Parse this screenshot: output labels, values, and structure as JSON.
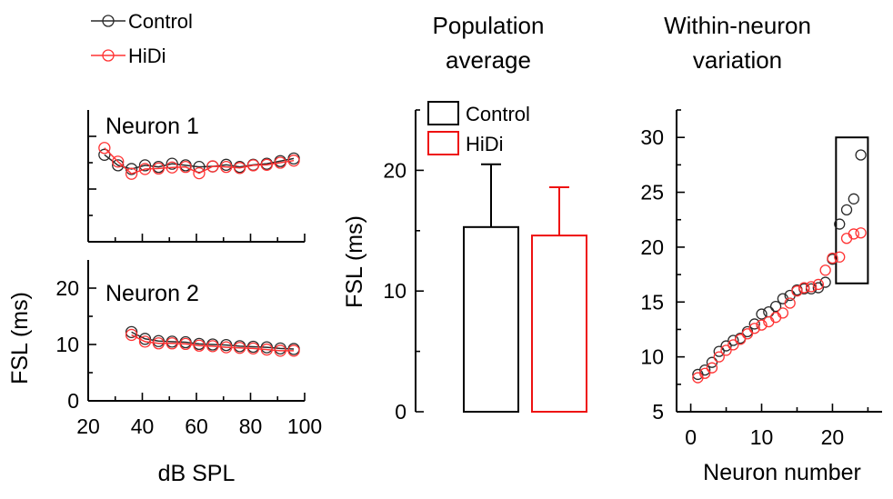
{
  "chart_data": [
    {
      "id": "neuron1",
      "type": "line",
      "title": "Neuron 1",
      "xlabel": "",
      "ylabel": "",
      "xlim": [
        20,
        100
      ],
      "ylim": [
        0,
        25
      ],
      "series": [
        {
          "name": "Control",
          "color": "#2a2a2a",
          "x": [
            26,
            31,
            36,
            41,
            46,
            51,
            56,
            61,
            66,
            71,
            76,
            81,
            86,
            91,
            96
          ],
          "y": [
            16.5,
            14.5,
            13.8,
            14.5,
            14.2,
            14.8,
            14.5,
            14.2,
            14.3,
            14.6,
            14.2,
            14.6,
            14.8,
            15.3,
            15.8
          ]
        },
        {
          "name": "HiDi",
          "color": "#ff3333",
          "x": [
            26,
            31,
            36,
            41,
            46,
            51,
            56,
            61,
            66,
            71,
            76,
            81,
            86,
            91,
            96
          ],
          "y": [
            17.8,
            15.2,
            12.9,
            13.8,
            13.9,
            14.1,
            14.2,
            13.0,
            14.3,
            14.2,
            14.0,
            14.5,
            14.6,
            15.0,
            15.4
          ]
        }
      ]
    },
    {
      "id": "neuron2",
      "type": "line",
      "title": "Neuron 2",
      "xlabel": "dB SPL",
      "ylabel": "FSL (ms)",
      "xlim": [
        20,
        100
      ],
      "ylim": [
        0,
        25
      ],
      "xticks": [
        "20",
        "40",
        "60",
        "80",
        "100"
      ],
      "yticks": [
        "0",
        "10",
        "20"
      ],
      "series": [
        {
          "name": "Control",
          "color": "#2a2a2a",
          "x": [
            36,
            41,
            46,
            51,
            56,
            61,
            66,
            71,
            76,
            81,
            86,
            91,
            96
          ],
          "y": [
            12.2,
            11.0,
            10.6,
            10.5,
            10.4,
            10.1,
            10.0,
            9.9,
            9.7,
            9.6,
            9.5,
            9.3,
            9.2
          ]
        },
        {
          "name": "HiDi",
          "color": "#ff3333",
          "x": [
            36,
            41,
            46,
            51,
            56,
            61,
            66,
            71,
            76,
            81,
            86,
            91,
            96
          ],
          "y": [
            11.7,
            10.5,
            10.2,
            10.2,
            10.1,
            9.8,
            9.7,
            9.5,
            9.4,
            9.3,
            9.1,
            8.9,
            8.9
          ]
        }
      ],
      "legend": [
        "Control",
        "HiDi"
      ]
    },
    {
      "id": "population",
      "type": "bar",
      "title": "Population average",
      "title_lines": [
        "Population",
        "average"
      ],
      "ylabel": "FSL (ms)",
      "ylim": [
        0,
        25
      ],
      "yticks": [
        "0",
        "10",
        "20"
      ],
      "categories": [
        "Control",
        "HiDi"
      ],
      "values": [
        15.3,
        14.6
      ],
      "errors": [
        5.2,
        4.0
      ],
      "colors": [
        "#000000",
        "#ee1111"
      ],
      "legend": [
        "Control",
        "HiDi"
      ]
    },
    {
      "id": "within",
      "type": "scatter",
      "title": "Within-neuron variation",
      "title_lines": [
        "Within-neuron",
        "variation"
      ],
      "xlabel": "Neuron number",
      "xlim": [
        -2,
        27
      ],
      "ylim": [
        5,
        32.5
      ],
      "xticks": [
        "0",
        "10",
        "20"
      ],
      "yticks": [
        "5",
        "10",
        "15",
        "20",
        "25",
        "30"
      ],
      "series": [
        {
          "name": "Control",
          "color": "#2a2a2a",
          "x": [
            1,
            2,
            3,
            4,
            5,
            6,
            7,
            8,
            9,
            10,
            11,
            12,
            13,
            14,
            15,
            16,
            17,
            18,
            19,
            20,
            21,
            22,
            23,
            24
          ],
          "y": [
            8.4,
            8.8,
            9.5,
            10.5,
            11.0,
            11.5,
            11.7,
            12.3,
            13.0,
            13.9,
            14.1,
            14.6,
            15.3,
            15.6,
            16.1,
            16.2,
            16.2,
            16.3,
            16.8,
            18.9,
            22.1,
            23.4,
            24.4,
            28.4
          ]
        },
        {
          "name": "HiDi",
          "color": "#ff3333",
          "x": [
            1,
            2,
            3,
            4,
            5,
            6,
            7,
            8,
            9,
            10,
            11,
            12,
            13,
            14,
            15,
            16,
            17,
            18,
            19,
            20,
            21,
            22,
            23,
            24
          ],
          "y": [
            8.1,
            8.5,
            9.0,
            10.0,
            10.6,
            11.1,
            11.6,
            12.1,
            12.6,
            12.9,
            13.2,
            13.6,
            14.0,
            14.9,
            16.0,
            16.3,
            16.4,
            16.6,
            17.9,
            19.0,
            19.1,
            20.8,
            21.2,
            21.3
          ]
        }
      ],
      "highlight_box": {
        "x": [
          20.5,
          25
        ],
        "y": [
          16.7,
          30
        ]
      }
    }
  ]
}
